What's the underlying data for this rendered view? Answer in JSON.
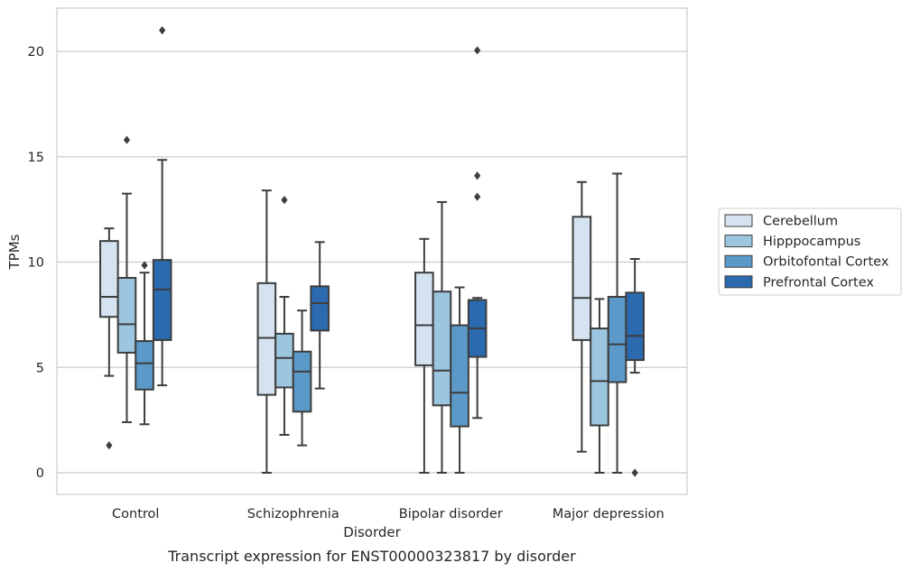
{
  "chart_data": {
    "type": "box",
    "caption": "Transcript expression for ENST00000323817 by disorder",
    "xlabel": "Disorder",
    "ylabel": "TPMs",
    "ylim": [
      -1,
      22
    ],
    "yticks": [
      0,
      5,
      10,
      15,
      20
    ],
    "grid": "horizontal",
    "legend_position": "right",
    "categories": [
      "Control",
      "Schizophrenia",
      "Bipolar disorder",
      "Major depression"
    ],
    "series": [
      {
        "name": "Cerebellum",
        "color": "#d5e3f1",
        "boxes": [
          {
            "whisker_low": 4.6,
            "q1": 7.4,
            "median": 8.35,
            "q3": 11.0,
            "whisker_high": 11.6,
            "outliers": [
              1.3
            ]
          },
          {
            "whisker_low": 0.0,
            "q1": 3.7,
            "median": 6.4,
            "q3": 9.0,
            "whisker_high": 13.4,
            "outliers": []
          },
          {
            "whisker_low": 0.0,
            "q1": 5.1,
            "median": 7.0,
            "q3": 9.5,
            "whisker_high": 11.1,
            "outliers": []
          },
          {
            "whisker_low": 1.0,
            "q1": 6.3,
            "median": 8.3,
            "q3": 12.15,
            "whisker_high": 13.8,
            "outliers": []
          }
        ]
      },
      {
        "name": "Hipppocampus",
        "color": "#9cc5e0",
        "boxes": [
          {
            "whisker_low": 2.4,
            "q1": 5.7,
            "median": 7.05,
            "q3": 9.25,
            "whisker_high": 13.25,
            "outliers": [
              15.8
            ]
          },
          {
            "whisker_low": 1.8,
            "q1": 4.05,
            "median": 5.45,
            "q3": 6.6,
            "whisker_high": 8.35,
            "outliers": [
              12.95
            ]
          },
          {
            "whisker_low": 0.0,
            "q1": 3.2,
            "median": 4.85,
            "q3": 8.6,
            "whisker_high": 12.85,
            "outliers": []
          },
          {
            "whisker_low": 0.0,
            "q1": 2.25,
            "median": 4.35,
            "q3": 6.85,
            "whisker_high": 8.25,
            "outliers": []
          }
        ]
      },
      {
        "name": "Orbitofontal Cortex",
        "color": "#5b9ac8",
        "boxes": [
          {
            "whisker_low": 2.3,
            "q1": 3.95,
            "median": 5.2,
            "q3": 6.25,
            "whisker_high": 9.5,
            "outliers": [
              9.85
            ]
          },
          {
            "whisker_low": 1.3,
            "q1": 2.9,
            "median": 4.8,
            "q3": 5.75,
            "whisker_high": 7.7,
            "outliers": []
          },
          {
            "whisker_low": 0.0,
            "q1": 2.2,
            "median": 3.8,
            "q3": 7.0,
            "whisker_high": 8.8,
            "outliers": []
          },
          {
            "whisker_low": 0.0,
            "q1": 4.3,
            "median": 6.1,
            "q3": 8.35,
            "whisker_high": 14.2,
            "outliers": []
          }
        ]
      },
      {
        "name": "Prefrontal Cortex",
        "color": "#2b6aaf",
        "boxes": [
          {
            "whisker_low": 4.15,
            "q1": 6.3,
            "median": 8.7,
            "q3": 10.1,
            "whisker_high": 14.85,
            "outliers": [
              21.0
            ]
          },
          {
            "whisker_low": 4.0,
            "q1": 6.75,
            "median": 8.05,
            "q3": 8.85,
            "whisker_high": 10.95,
            "outliers": []
          },
          {
            "whisker_low": 2.6,
            "q1": 5.5,
            "median": 6.85,
            "q3": 8.2,
            "whisker_high": 8.3,
            "outliers": [
              13.1,
              14.1,
              20.05
            ]
          },
          {
            "whisker_low": 4.75,
            "q1": 5.35,
            "median": 6.5,
            "q3": 8.55,
            "whisker_high": 10.15,
            "outliers": [
              0.0
            ]
          }
        ]
      }
    ]
  }
}
